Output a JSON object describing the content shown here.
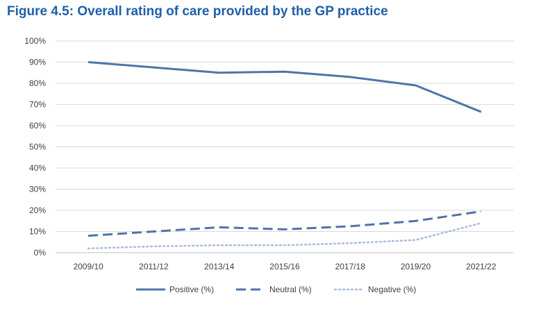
{
  "chart_data": {
    "type": "line",
    "title": "Figure 4.5: Overall rating of care provided by the GP practice",
    "xlabel": "",
    "ylabel": "",
    "categories": [
      "2009/10",
      "2011/12",
      "2013/14",
      "2015/16",
      "2017/18",
      "2019/20",
      "2021/22"
    ],
    "y_ticks": [
      "0%",
      "10%",
      "20%",
      "30%",
      "40%",
      "50%",
      "60%",
      "70%",
      "80%",
      "90%",
      "100%"
    ],
    "ylim": [
      0,
      100
    ],
    "grid": true,
    "legend_position": "bottom",
    "series": [
      {
        "name": "Positive (%)",
        "style": "solid",
        "color": "#4F74A8",
        "values": [
          90,
          87.5,
          85,
          85.5,
          83,
          79,
          66.5
        ]
      },
      {
        "name": "Neutral (%)",
        "style": "dashed",
        "color": "#4F74A8",
        "values": [
          8,
          10,
          12,
          11,
          12.5,
          15,
          19.5
        ]
      },
      {
        "name": "Negative (%)",
        "style": "dotted",
        "color": "#A9BCD9",
        "values": [
          2,
          3,
          3.5,
          3.5,
          4.5,
          6,
          14
        ]
      }
    ]
  }
}
